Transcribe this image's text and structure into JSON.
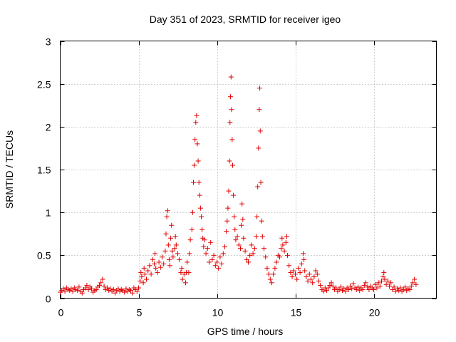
{
  "chart_data": {
    "type": "scatter",
    "title": "Day 351 of 2023, SRMTID for receiver igeo",
    "xlabel": "GPS time / hours",
    "ylabel": "SRMTID / TECUs",
    "xlim": [
      0,
      24
    ],
    "ylim": [
      0,
      3
    ],
    "xticks": [
      0,
      5,
      10,
      15,
      20
    ],
    "yticks": [
      0,
      0.5,
      1,
      1.5,
      2,
      2.5,
      3
    ],
    "xtick_labels": [
      "0",
      "5",
      "10",
      "15",
      "20"
    ],
    "ytick_labels": [
      "0",
      "0.5",
      "1",
      "1.5",
      "2",
      "2.5",
      "3"
    ],
    "grid": true,
    "marker": "+",
    "marker_color": "#e00000",
    "series": [
      {
        "name": "SRMTID",
        "points": [
          [
            0.0,
            0.07
          ],
          [
            0.1,
            0.09
          ],
          [
            0.2,
            0.11
          ],
          [
            0.3,
            0.08
          ],
          [
            0.4,
            0.12
          ],
          [
            0.5,
            0.1
          ],
          [
            0.6,
            0.09
          ],
          [
            0.7,
            0.11
          ],
          [
            0.8,
            0.08
          ],
          [
            0.9,
            0.12
          ],
          [
            1.0,
            0.1
          ],
          [
            1.1,
            0.09
          ],
          [
            1.2,
            0.13
          ],
          [
            1.3,
            0.08
          ],
          [
            1.4,
            0.06
          ],
          [
            1.5,
            0.1
          ],
          [
            1.6,
            0.12
          ],
          [
            1.7,
            0.15
          ],
          [
            1.8,
            0.1
          ],
          [
            1.9,
            0.13
          ],
          [
            2.0,
            0.11
          ],
          [
            2.1,
            0.07
          ],
          [
            2.2,
            0.09
          ],
          [
            2.3,
            0.1
          ],
          [
            2.4,
            0.13
          ],
          [
            2.5,
            0.15
          ],
          [
            2.6,
            0.18
          ],
          [
            2.7,
            0.22
          ],
          [
            2.8,
            0.14
          ],
          [
            2.9,
            0.1
          ],
          [
            3.0,
            0.12
          ],
          [
            3.1,
            0.09
          ],
          [
            3.2,
            0.11
          ],
          [
            3.3,
            0.08
          ],
          [
            3.4,
            0.1
          ],
          [
            3.5,
            0.06
          ],
          [
            3.6,
            0.09
          ],
          [
            3.7,
            0.11
          ],
          [
            3.8,
            0.08
          ],
          [
            3.9,
            0.1
          ],
          [
            4.0,
            0.09
          ],
          [
            4.1,
            0.07
          ],
          [
            4.2,
            0.11
          ],
          [
            4.3,
            0.08
          ],
          [
            4.4,
            0.1
          ],
          [
            4.5,
            0.09
          ],
          [
            4.6,
            0.06
          ],
          [
            4.7,
            0.12
          ],
          [
            4.8,
            0.1
          ],
          [
            4.9,
            0.08
          ],
          [
            5.0,
            0.12
          ],
          [
            5.1,
            0.2
          ],
          [
            5.15,
            0.3
          ],
          [
            5.2,
            0.25
          ],
          [
            5.3,
            0.18
          ],
          [
            5.35,
            0.35
          ],
          [
            5.4,
            0.28
          ],
          [
            5.5,
            0.22
          ],
          [
            5.6,
            0.32
          ],
          [
            5.7,
            0.38
          ],
          [
            5.8,
            0.28
          ],
          [
            5.9,
            0.45
          ],
          [
            6.0,
            0.4
          ],
          [
            6.05,
            0.52
          ],
          [
            6.1,
            0.35
          ],
          [
            6.2,
            0.3
          ],
          [
            6.3,
            0.42
          ],
          [
            6.4,
            0.36
          ],
          [
            6.5,
            0.48
          ],
          [
            6.6,
            0.4
          ],
          [
            6.7,
            0.55
          ],
          [
            6.75,
            0.75
          ],
          [
            6.8,
            0.95
          ],
          [
            6.85,
            1.02
          ],
          [
            6.9,
            0.62
          ],
          [
            6.95,
            0.45
          ],
          [
            7.0,
            0.38
          ],
          [
            7.05,
            0.7
          ],
          [
            7.1,
            0.85
          ],
          [
            7.15,
            0.55
          ],
          [
            7.2,
            0.48
          ],
          [
            7.3,
            0.58
          ],
          [
            7.35,
            0.72
          ],
          [
            7.4,
            0.62
          ],
          [
            7.5,
            0.52
          ],
          [
            7.6,
            0.45
          ],
          [
            7.7,
            0.3
          ],
          [
            7.75,
            0.35
          ],
          [
            7.8,
            0.22
          ],
          [
            7.9,
            0.28
          ],
          [
            8.0,
            0.18
          ],
          [
            8.05,
            0.3
          ],
          [
            8.1,
            0.42
          ],
          [
            8.2,
            0.3
          ],
          [
            8.25,
            0.52
          ],
          [
            8.3,
            0.68
          ],
          [
            8.4,
            0.8
          ],
          [
            8.45,
            1.0
          ],
          [
            8.5,
            1.35
          ],
          [
            8.55,
            1.55
          ],
          [
            8.6,
            1.85
          ],
          [
            8.65,
            2.05
          ],
          [
            8.7,
            2.13
          ],
          [
            8.75,
            1.8
          ],
          [
            8.8,
            1.6
          ],
          [
            8.85,
            1.35
          ],
          [
            8.9,
            1.2
          ],
          [
            8.95,
            1.05
          ],
          [
            9.0,
            0.95
          ],
          [
            9.05,
            0.8
          ],
          [
            9.1,
            0.7
          ],
          [
            9.15,
            0.6
          ],
          [
            9.2,
            0.68
          ],
          [
            9.3,
            0.52
          ],
          [
            9.4,
            0.58
          ],
          [
            9.5,
            0.42
          ],
          [
            9.6,
            0.65
          ],
          [
            9.7,
            0.45
          ],
          [
            9.8,
            0.5
          ],
          [
            9.9,
            0.38
          ],
          [
            10.0,
            0.42
          ],
          [
            10.1,
            0.35
          ],
          [
            10.2,
            0.48
          ],
          [
            10.3,
            0.4
          ],
          [
            10.4,
            0.52
          ],
          [
            10.5,
            0.6
          ],
          [
            10.6,
            0.78
          ],
          [
            10.65,
            0.9
          ],
          [
            10.7,
            1.05
          ],
          [
            10.75,
            1.25
          ],
          [
            10.8,
            1.6
          ],
          [
            10.83,
            2.05
          ],
          [
            10.86,
            2.35
          ],
          [
            10.9,
            2.58
          ],
          [
            10.93,
            2.2
          ],
          [
            10.97,
            1.85
          ],
          [
            11.0,
            1.55
          ],
          [
            11.05,
            1.2
          ],
          [
            11.1,
            0.95
          ],
          [
            11.15,
            0.8
          ],
          [
            11.2,
            0.68
          ],
          [
            11.3,
            0.72
          ],
          [
            11.4,
            0.62
          ],
          [
            11.5,
            0.58
          ],
          [
            11.55,
            0.85
          ],
          [
            11.6,
            1.1
          ],
          [
            11.65,
            0.92
          ],
          [
            11.7,
            0.7
          ],
          [
            11.8,
            0.55
          ],
          [
            11.9,
            0.45
          ],
          [
            12.0,
            0.42
          ],
          [
            12.1,
            0.5
          ],
          [
            12.2,
            0.62
          ],
          [
            12.3,
            0.52
          ],
          [
            12.4,
            0.58
          ],
          [
            12.5,
            0.72
          ],
          [
            12.55,
            0.95
          ],
          [
            12.6,
            1.3
          ],
          [
            12.65,
            1.75
          ],
          [
            12.7,
            2.2
          ],
          [
            12.73,
            2.45
          ],
          [
            12.76,
            1.95
          ],
          [
            12.8,
            1.35
          ],
          [
            12.85,
            0.9
          ],
          [
            12.9,
            0.72
          ],
          [
            13.0,
            0.58
          ],
          [
            13.1,
            0.48
          ],
          [
            13.2,
            0.35
          ],
          [
            13.3,
            0.28
          ],
          [
            13.4,
            0.22
          ],
          [
            13.5,
            0.18
          ],
          [
            13.6,
            0.28
          ],
          [
            13.7,
            0.35
          ],
          [
            13.8,
            0.42
          ],
          [
            13.9,
            0.5
          ],
          [
            14.0,
            0.48
          ],
          [
            14.1,
            0.58
          ],
          [
            14.15,
            0.7
          ],
          [
            14.2,
            0.62
          ],
          [
            14.3,
            0.55
          ],
          [
            14.4,
            0.65
          ],
          [
            14.45,
            0.72
          ],
          [
            14.5,
            0.5
          ],
          [
            14.6,
            0.38
          ],
          [
            14.7,
            0.3
          ],
          [
            14.8,
            0.25
          ],
          [
            14.9,
            0.32
          ],
          [
            15.0,
            0.28
          ],
          [
            15.1,
            0.22
          ],
          [
            15.2,
            0.35
          ],
          [
            15.3,
            0.3
          ],
          [
            15.4,
            0.4
          ],
          [
            15.5,
            0.52
          ],
          [
            15.55,
            0.45
          ],
          [
            15.6,
            0.32
          ],
          [
            15.7,
            0.25
          ],
          [
            15.8,
            0.2
          ],
          [
            15.9,
            0.28
          ],
          [
            16.0,
            0.22
          ],
          [
            16.1,
            0.18
          ],
          [
            16.2,
            0.25
          ],
          [
            16.3,
            0.32
          ],
          [
            16.4,
            0.28
          ],
          [
            16.5,
            0.2
          ],
          [
            16.6,
            0.15
          ],
          [
            16.7,
            0.1
          ],
          [
            16.8,
            0.08
          ],
          [
            16.9,
            0.12
          ],
          [
            17.0,
            0.09
          ],
          [
            17.1,
            0.12
          ],
          [
            17.2,
            0.15
          ],
          [
            17.3,
            0.18
          ],
          [
            17.4,
            0.14
          ],
          [
            17.5,
            0.1
          ],
          [
            17.6,
            0.12
          ],
          [
            17.7,
            0.08
          ],
          [
            17.8,
            0.1
          ],
          [
            17.9,
            0.13
          ],
          [
            18.0,
            0.09
          ],
          [
            18.1,
            0.11
          ],
          [
            18.2,
            0.08
          ],
          [
            18.3,
            0.12
          ],
          [
            18.4,
            0.1
          ],
          [
            18.5,
            0.14
          ],
          [
            18.6,
            0.11
          ],
          [
            18.7,
            0.17
          ],
          [
            18.8,
            0.12
          ],
          [
            18.9,
            0.1
          ],
          [
            19.0,
            0.13
          ],
          [
            19.1,
            0.09
          ],
          [
            19.2,
            0.12
          ],
          [
            19.3,
            0.1
          ],
          [
            19.4,
            0.15
          ],
          [
            19.5,
            0.18
          ],
          [
            19.6,
            0.13
          ],
          [
            19.7,
            0.1
          ],
          [
            19.8,
            0.14
          ],
          [
            19.9,
            0.12
          ],
          [
            20.0,
            0.1
          ],
          [
            20.1,
            0.16
          ],
          [
            20.2,
            0.12
          ],
          [
            20.3,
            0.18
          ],
          [
            20.4,
            0.14
          ],
          [
            20.5,
            0.2
          ],
          [
            20.6,
            0.25
          ],
          [
            20.65,
            0.3
          ],
          [
            20.7,
            0.22
          ],
          [
            20.8,
            0.16
          ],
          [
            20.9,
            0.2
          ],
          [
            21.0,
            0.14
          ],
          [
            21.1,
            0.18
          ],
          [
            21.2,
            0.1
          ],
          [
            21.3,
            0.13
          ],
          [
            21.4,
            0.08
          ],
          [
            21.5,
            0.11
          ],
          [
            21.6,
            0.09
          ],
          [
            21.7,
            0.12
          ],
          [
            21.8,
            0.08
          ],
          [
            21.9,
            0.1
          ],
          [
            22.0,
            0.13
          ],
          [
            22.1,
            0.09
          ],
          [
            22.2,
            0.11
          ],
          [
            22.3,
            0.1
          ],
          [
            22.4,
            0.14
          ],
          [
            22.5,
            0.18
          ],
          [
            22.6,
            0.22
          ],
          [
            22.7,
            0.16
          ]
        ]
      }
    ]
  }
}
